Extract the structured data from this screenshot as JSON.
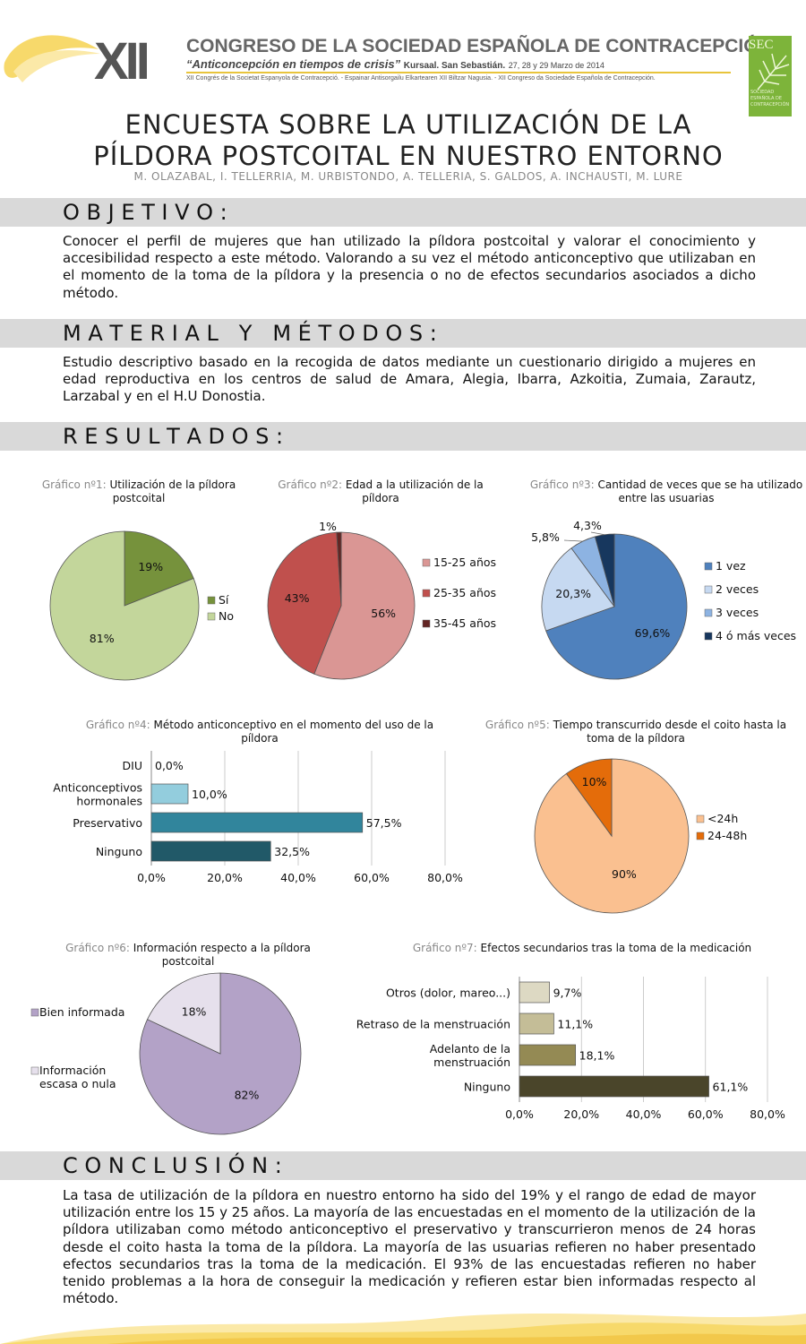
{
  "header": {
    "roman": "XII",
    "congress": "CONGRESO DE LA SOCIEDAD ESPAÑOLA DE CONTRACEPCIÓN",
    "slogan": "“Anticoncepción en tiempos de crisis”",
    "venue": "Kursaal. San Sebastián.",
    "dates": "27, 28 y 29 Marzo de 2014",
    "languages": "XII Congrés de la Societat Espanyola de Contracepció. - Espainar Antisorgailu Elkartearen XII Biltzar Nagusia. - XII Congreso da Sociedade Española de Contracepción.",
    "logo_text": "SEC",
    "logo_sub": "SOCIEDAD ESPAÑOLA DE CONTRACEPCIÓN"
  },
  "title": {
    "line1": "ENCUESTA SOBRE LA UTILIZACIÓN DE LA",
    "line2": "PÍLDORA POSTCOITAL EN NUESTRO ENTORNO",
    "authors": "M. OLAZABAL, I. TELLERRIA, M. URBISTONDO, A. TELLERIA, S. GALDOS, A. INCHAUSTI, M. LURE"
  },
  "sections": {
    "objetivo": {
      "heading": "O B J E T I V O :",
      "text": "Conocer el perfil de mujeres que han utilizado la píldora postcoital y valorar el conocimiento y accesibilidad respecto a este método. Valorando a su vez el método anticonceptivo que utilizaban en el momento de la toma de la píldora y la presencia o no de efectos secundarios asociados a dicho método."
    },
    "material": {
      "heading": "M A T E R I A L   Y   M É T O D O S :",
      "text": "Estudio  descriptivo basado en la recogida de datos mediante un cuestionario dirigido a mujeres en edad reproductiva en los centros de salud de Amara, Alegia, Ibarra, Azkoitia, Zumaia, Zarautz, Larzabal y en el H.U Donostia."
    },
    "resultados": {
      "heading": "R E S U L T A D O S :"
    },
    "conclusion": {
      "heading": "C O N C L U S I Ó N :",
      "text": "La tasa de utilización de la píldora en nuestro entorno ha sido del 19% y el rango de edad de mayor utilización entre los 15 y 25 años. La mayoría de las encuestadas en el momento de la utilización de la píldora utilizaban como método anticonceptivo el preservativo y transcurrieron menos de 24 horas desde el coito hasta la toma de la píldora. La mayoría de las usuarias refieren no haber presentado efectos secundarios tras la toma de la medicación. El 93% de las encuestadas refieren no haber tenido problemas a la hora de conseguir la medicación y refieren estar bien informadas respecto al método."
    }
  },
  "chart_data": [
    {
      "id": "g1",
      "type": "pie",
      "num": "Gráfico nº1:",
      "title": "Utilización  de la píldora postcoital",
      "slices": [
        {
          "label": "Sí",
          "value": 19,
          "text": "19%",
          "color": "#76923c"
        },
        {
          "label": "No",
          "value": 81,
          "text": "81%",
          "color": "#c3d69b"
        }
      ]
    },
    {
      "id": "g2",
      "type": "pie",
      "num": "Gráfico nº2:",
      "title": "Edad a la utilización  de la píldora",
      "slices": [
        {
          "label": "15-25 años",
          "value": 56,
          "text": "56%",
          "color": "#da9694"
        },
        {
          "label": "25-35 años",
          "value": 43,
          "text": "43%",
          "color": "#c0504d"
        },
        {
          "label": "35-45 años",
          "value": 1,
          "text": "1%",
          "color": "#632523"
        }
      ]
    },
    {
      "id": "g3",
      "type": "pie",
      "num": "Gráfico nº3:",
      "title": "Cantidad de veces que se ha utilizado entre las usuarias",
      "slices": [
        {
          "label": "1 vez",
          "value": 69.6,
          "text": "69,6%",
          "color": "#4f81bd"
        },
        {
          "label": "2 veces",
          "value": 20.3,
          "text": "20,3%",
          "color": "#c6d9f1"
        },
        {
          "label": "3 veces",
          "value": 5.8,
          "text": "5,8%",
          "color": "#8db3e2"
        },
        {
          "label": "4 ó más veces",
          "value": 4.3,
          "text": "4,3%",
          "color": "#17375e"
        }
      ]
    },
    {
      "id": "g4",
      "type": "bar",
      "num": "Gráfico nº4:",
      "title": "Método anticonceptivo en el momento del uso de la píldora",
      "categories": [
        "DIU",
        "Anticonceptivos hormonales",
        "Preservativo",
        "Ninguno"
      ],
      "values": [
        0.0,
        10.0,
        57.5,
        32.5
      ],
      "value_labels": [
        "0,0%",
        "10,0%",
        "57,5%",
        "32,5%"
      ],
      "colors": [
        "#93cddd",
        "#93cddd",
        "#31859c",
        "#215968"
      ],
      "xlim": [
        0,
        80
      ],
      "ticks": [
        "0,0%",
        "20,0%",
        "40,0%",
        "60,0%",
        "80,0%"
      ]
    },
    {
      "id": "g5",
      "type": "pie",
      "num": "Gráfico nº5:",
      "title": "Tiempo transcurrido desde el coito hasta la toma de la píldora",
      "slices": [
        {
          "label": "<24h",
          "value": 90,
          "text": "90%",
          "color": "#fac090"
        },
        {
          "label": "24-48h",
          "value": 10,
          "text": "10%",
          "color": "#e46c0a"
        }
      ]
    },
    {
      "id": "g6",
      "type": "pie",
      "num": "Gráfico nº6:",
      "title": "Información  respecto a la píldora postcoital",
      "slices": [
        {
          "label": "Bien informada",
          "value": 82,
          "text": "82%",
          "color": "#b3a2c7"
        },
        {
          "label": "Información escasa o nula",
          "value": 18,
          "text": "18%",
          "color": "#e6e0ec"
        }
      ]
    },
    {
      "id": "g7",
      "type": "bar",
      "num": "Gráfico nº7:",
      "title": "Efectos secundarios tras la toma de  la medicación",
      "categories": [
        "Otros (dolor, mareo...)",
        "Retraso de la menstruación",
        "Adelanto de la menstruación",
        "Ninguno"
      ],
      "values": [
        9.7,
        11.1,
        18.1,
        61.1
      ],
      "value_labels": [
        "9,7%",
        "11,1%",
        "18,1%",
        "61,1%"
      ],
      "colors": [
        "#ddd9c3",
        "#c4bd97",
        "#948a54",
        "#4a452a"
      ],
      "xlim": [
        0,
        80
      ],
      "ticks": [
        "0,0%",
        "20,0%",
        "40,0%",
        "60,0%",
        "80,0%"
      ]
    }
  ]
}
